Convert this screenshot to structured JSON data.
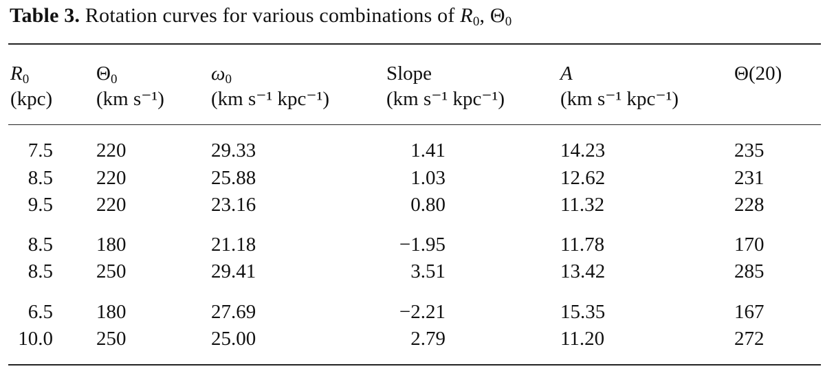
{
  "caption": {
    "label": "Table 3.",
    "text": "Rotation curves for various combinations of",
    "r_symbol": "R",
    "r_sub": "0",
    "sep": ", ",
    "theta_symbol": "Θ",
    "theta_sub": "0"
  },
  "headers": [
    {
      "sym": "R",
      "sub": "0",
      "unit": "(kpc)"
    },
    {
      "sym": "Θ",
      "sub": "0",
      "unit": "(km s⁻¹)"
    },
    {
      "sym": "ω",
      "sub": "0",
      "unit": "(km s⁻¹ kpc⁻¹)"
    },
    {
      "sym": "Slope",
      "sub": "",
      "unit": "(km s⁻¹ kpc⁻¹)"
    },
    {
      "sym": "A",
      "sub": "",
      "unit": "(km s⁻¹ kpc⁻¹)"
    },
    {
      "sym": "Θ(20)",
      "sub": "",
      "unit": ""
    }
  ],
  "rows": [
    [
      "7.5",
      "220",
      "29.33",
      "1.41",
      "14.23",
      "235"
    ],
    [
      "8.5",
      "220",
      "25.88",
      "1.03",
      "12.62",
      "231"
    ],
    [
      "9.5",
      "220",
      "23.16",
      "0.80",
      "11.32",
      "228"
    ],
    [
      "8.5",
      "180",
      "21.18",
      "−1.95",
      "11.78",
      "170"
    ],
    [
      "8.5",
      "250",
      "29.41",
      "3.51",
      "13.42",
      "285"
    ],
    [
      "6.5",
      "180",
      "27.69",
      "−2.21",
      "15.35",
      "167"
    ],
    [
      "10.0",
      "250",
      "25.00",
      "2.79",
      "11.20",
      "272"
    ]
  ]
}
